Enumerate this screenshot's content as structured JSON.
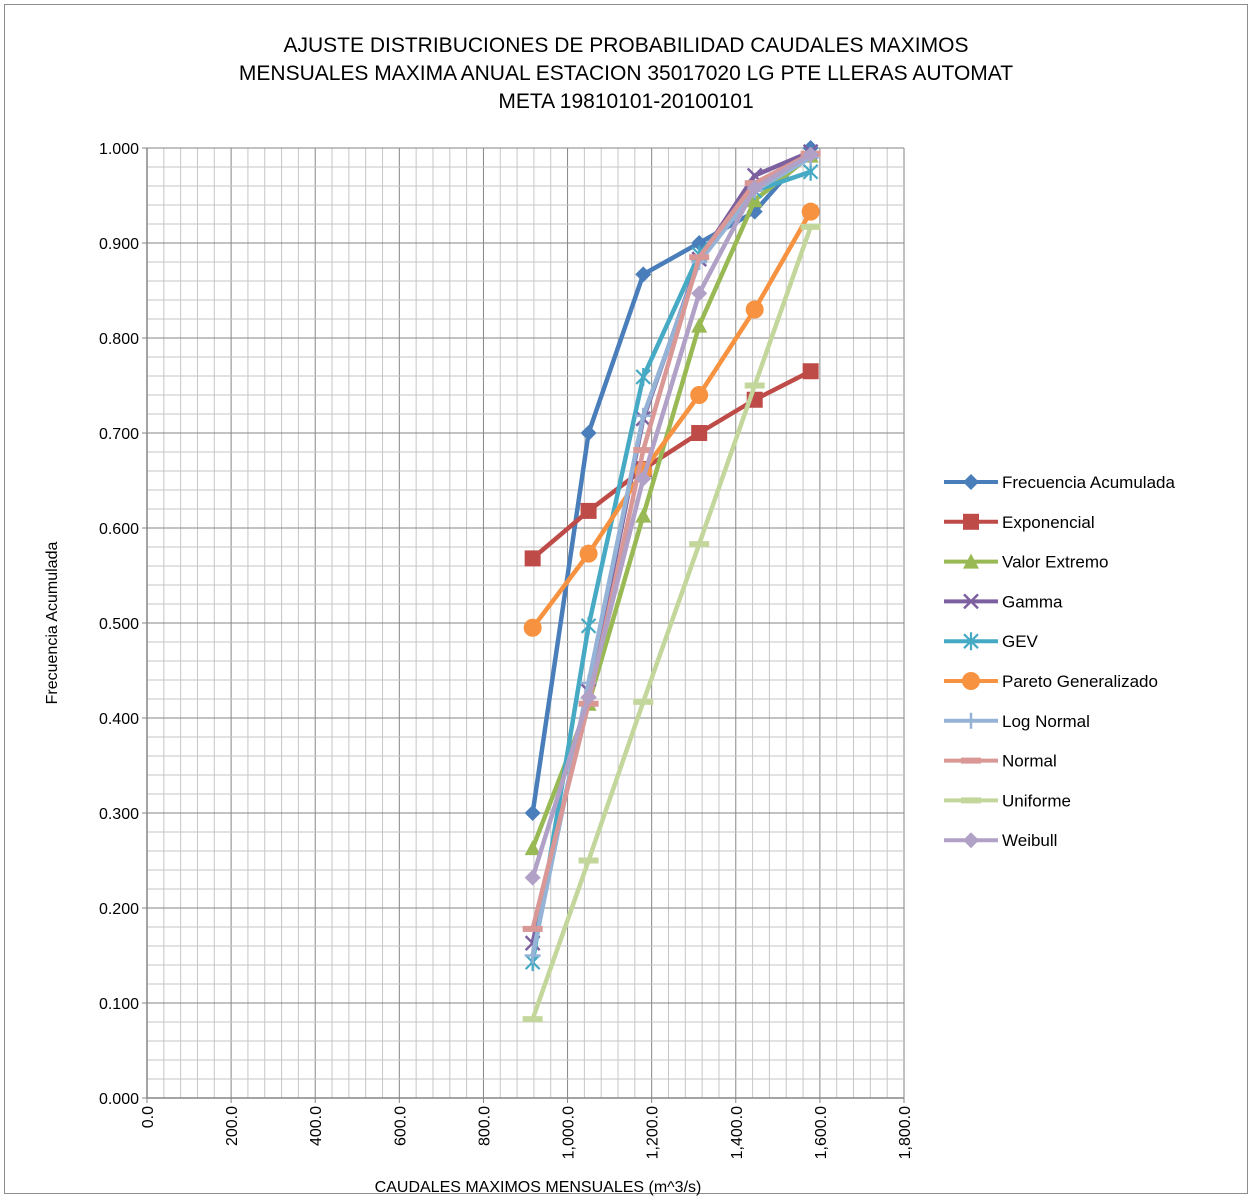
{
  "chart_data": {
    "type": "scatter",
    "title_lines": [
      "AJUSTE DISTRIBUCIONES DE PROBABILIDAD CAUDALES MAXIMOS",
      "MENSUALES MAXIMA ANUAL ESTACION 35017020 LG PTE LLERAS AUTOMAT",
      "META 19810101-20100101"
    ],
    "xlabel": "CAUDALES MAXIMOS MENSUALES (m^3/s)",
    "ylabel": "Frecuencia Acumulada",
    "xlim": [
      0,
      1800
    ],
    "ylim": [
      0,
      1
    ],
    "x_major_step": 200,
    "x_minor_step": 40,
    "y_major_step": 0.1,
    "y_minor_step": 0.02,
    "x_tick_labels": [
      "0.0",
      "200.0",
      "400.0",
      "600.0",
      "800.0",
      "1,000.0",
      "1,200.0",
      "1,400.0",
      "1,600.0",
      "1,800.0"
    ],
    "y_tick_labels": [
      "0.000",
      "0.100",
      "0.200",
      "0.300",
      "0.400",
      "0.500",
      "0.600",
      "0.700",
      "0.800",
      "0.900",
      "1.000"
    ],
    "grid": true,
    "legend_position": "right",
    "x": [
      917,
      1050,
      1180,
      1313,
      1445,
      1578
    ],
    "series": [
      {
        "name": "Frecuencia Acumulada",
        "color": "#4a7ebb",
        "marker": "diamond",
        "values": [
          0.3,
          0.7,
          0.867,
          0.9,
          0.933,
          1.0
        ]
      },
      {
        "name": "Exponencial",
        "color": "#be4b48",
        "marker": "square",
        "values": [
          0.568,
          0.618,
          0.662,
          0.7,
          0.735,
          0.765
        ]
      },
      {
        "name": "Valor Extremo",
        "color": "#98b954",
        "marker": "triangle",
        "values": [
          0.263,
          0.415,
          0.613,
          0.813,
          0.945,
          0.992
        ]
      },
      {
        "name": "Gamma",
        "color": "#7d60a0",
        "marker": "x",
        "values": [
          0.163,
          0.428,
          0.715,
          0.883,
          0.971,
          0.996
        ]
      },
      {
        "name": "GEV",
        "color": "#46aac5",
        "marker": "star",
        "values": [
          0.143,
          0.497,
          0.759,
          0.888,
          0.955,
          0.975
        ]
      },
      {
        "name": "Pareto Generalizado",
        "color": "#f69240",
        "marker": "circle",
        "values": [
          0.495,
          0.573,
          0.66,
          0.74,
          0.83,
          0.933
        ]
      },
      {
        "name": "Log Normal",
        "color": "#95b3d7",
        "marker": "plus",
        "values": [
          0.15,
          0.437,
          0.718,
          0.88,
          0.955,
          0.99
        ]
      },
      {
        "name": "Normal",
        "color": "#d99795",
        "marker": "dash",
        "values": [
          0.178,
          0.415,
          0.682,
          0.885,
          0.963,
          0.994
        ]
      },
      {
        "name": "Uniforme",
        "color": "#c3d69b",
        "marker": "dash",
        "values": [
          0.083,
          0.25,
          0.417,
          0.583,
          0.75,
          0.917
        ]
      },
      {
        "name": "Weibull",
        "color": "#b2a1c7",
        "marker": "diamond",
        "values": [
          0.232,
          0.422,
          0.652,
          0.847,
          0.958,
          0.993
        ]
      }
    ]
  }
}
